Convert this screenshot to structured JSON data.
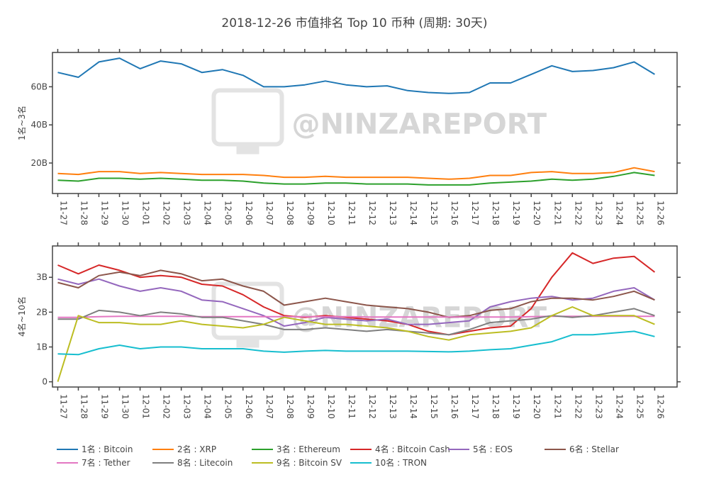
{
  "title": "2018-12-26 市值排名 Top 10 币种 (周期: 30天)",
  "watermark": "@NINZAREPORT",
  "chart_data": [
    {
      "type": "line",
      "panel": "top",
      "ylabel": "1名~3名",
      "x": [
        "11-27",
        "11-28",
        "11-29",
        "11-30",
        "12-01",
        "12-02",
        "12-03",
        "12-04",
        "12-05",
        "12-06",
        "12-07",
        "12-08",
        "12-09",
        "12-10",
        "12-11",
        "12-12",
        "12-13",
        "12-14",
        "12-15",
        "12-16",
        "12-17",
        "12-18",
        "12-19",
        "12-20",
        "12-21",
        "12-22",
        "12-23",
        "12-24",
        "12-25",
        "12-26"
      ],
      "ylim": [
        4,
        78
      ],
      "yticks": [
        {
          "value": 20,
          "label": "20B"
        },
        {
          "value": 40,
          "label": "40B"
        },
        {
          "value": 60,
          "label": "60B"
        }
      ],
      "series": [
        {
          "name": "1名 : Bitcoin",
          "color": "#1f77b4",
          "values": [
            67.5,
            65,
            73,
            75,
            69.5,
            73.5,
            72,
            67.5,
            69,
            66,
            60,
            60,
            61,
            63,
            61,
            60,
            60.5,
            58,
            57,
            56.5,
            57,
            62,
            62,
            66.5,
            71,
            68,
            68.5,
            70,
            73,
            66.5
          ]
        },
        {
          "name": "2名 : XRP",
          "color": "#ff7f0e",
          "values": [
            14.5,
            14,
            15.5,
            15.5,
            14.5,
            15,
            14.5,
            14,
            14,
            14,
            13.5,
            12.5,
            12.5,
            13,
            12.5,
            12.5,
            12.5,
            12.5,
            12,
            11.5,
            12,
            13.5,
            13.5,
            15,
            15.5,
            14.5,
            14.5,
            15,
            17.5,
            15.5
          ]
        },
        {
          "name": "3名 : Ethereum",
          "color": "#2ca02c",
          "values": [
            11,
            10.5,
            12,
            12,
            11.5,
            12,
            11.5,
            11,
            11,
            10.5,
            9.5,
            9,
            9,
            9.5,
            9.5,
            9,
            9,
            9,
            8.5,
            8.5,
            8.5,
            9.5,
            10,
            10.5,
            11.5,
            11,
            11.5,
            13,
            15,
            13.5
          ]
        }
      ]
    },
    {
      "type": "line",
      "panel": "bottom",
      "ylabel": "4名~10名",
      "x": [
        "11-27",
        "11-28",
        "11-29",
        "11-30",
        "12-01",
        "12-02",
        "12-03",
        "12-04",
        "12-05",
        "12-06",
        "12-07",
        "12-08",
        "12-09",
        "12-10",
        "12-11",
        "12-12",
        "12-13",
        "12-14",
        "12-15",
        "12-16",
        "12-17",
        "12-18",
        "12-19",
        "12-20",
        "12-21",
        "12-22",
        "12-23",
        "12-24",
        "12-25",
        "12-26"
      ],
      "ylim": [
        -0.15,
        3.9
      ],
      "yticks": [
        {
          "value": 0,
          "label": "0"
        },
        {
          "value": 1,
          "label": "1B"
        },
        {
          "value": 2,
          "label": "2B"
        },
        {
          "value": 3,
          "label": "3B"
        }
      ],
      "series": [
        {
          "name": "4名 : Bitcoin Cash",
          "color": "#d62728",
          "values": [
            3.35,
            3.1,
            3.35,
            3.2,
            3.0,
            3.05,
            3.0,
            2.8,
            2.75,
            2.5,
            2.15,
            1.9,
            1.85,
            1.9,
            1.85,
            1.8,
            1.75,
            1.65,
            1.45,
            1.35,
            1.45,
            1.55,
            1.6,
            2.1,
            3.0,
            3.7,
            3.4,
            3.55,
            3.6,
            3.15
          ]
        },
        {
          "name": "5名 : EOS",
          "color": "#9467bd",
          "values": [
            2.95,
            2.8,
            2.95,
            2.75,
            2.6,
            2.7,
            2.6,
            2.35,
            2.3,
            2.1,
            1.9,
            1.6,
            1.7,
            1.85,
            1.8,
            1.75,
            1.8,
            1.65,
            1.65,
            1.7,
            1.75,
            2.15,
            2.3,
            2.4,
            2.45,
            2.35,
            2.4,
            2.6,
            2.7,
            2.35
          ]
        },
        {
          "name": "6名 : Stellar",
          "color": "#8c564b",
          "values": [
            2.85,
            2.7,
            3.05,
            3.15,
            3.05,
            3.2,
            3.1,
            2.9,
            2.95,
            2.75,
            2.6,
            2.2,
            2.3,
            2.4,
            2.3,
            2.2,
            2.15,
            2.1,
            2.0,
            1.85,
            1.9,
            2.05,
            2.1,
            2.3,
            2.4,
            2.4,
            2.35,
            2.45,
            2.6,
            2.35
          ]
        },
        {
          "name": "7名 : Tether",
          "color": "#e377c2",
          "values": [
            1.85,
            1.85,
            1.87,
            1.88,
            1.88,
            1.88,
            1.88,
            1.87,
            1.87,
            1.87,
            1.87,
            1.87,
            1.87,
            1.87,
            1.87,
            1.86,
            1.86,
            1.86,
            1.86,
            1.86,
            1.86,
            1.86,
            1.86,
            1.87,
            1.88,
            1.88,
            1.88,
            1.88,
            1.88,
            1.88
          ]
        },
        {
          "name": "8名 : Litecoin",
          "color": "#7f7f7f",
          "values": [
            1.8,
            1.8,
            2.05,
            2.0,
            1.9,
            2.0,
            1.95,
            1.85,
            1.85,
            1.75,
            1.65,
            1.5,
            1.5,
            1.55,
            1.5,
            1.45,
            1.5,
            1.45,
            1.4,
            1.35,
            1.5,
            1.7,
            1.75,
            1.8,
            1.9,
            1.85,
            1.9,
            2.0,
            2.1,
            1.9
          ]
        },
        {
          "name": "9名 : Bitcoin SV",
          "color": "#bcbd22",
          "values": [
            0.0,
            1.9,
            1.7,
            1.7,
            1.65,
            1.65,
            1.75,
            1.65,
            1.6,
            1.55,
            1.65,
            1.85,
            1.75,
            1.65,
            1.65,
            1.6,
            1.55,
            1.45,
            1.3,
            1.2,
            1.35,
            1.4,
            1.45,
            1.55,
            1.9,
            2.15,
            1.9,
            1.9,
            1.9,
            1.65
          ]
        },
        {
          "name": "10名 : TRON",
          "color": "#17becf",
          "values": [
            0.8,
            0.78,
            0.95,
            1.05,
            0.95,
            1.0,
            1.0,
            0.95,
            0.95,
            0.95,
            0.88,
            0.85,
            0.88,
            0.9,
            0.88,
            0.88,
            0.88,
            0.88,
            0.87,
            0.86,
            0.88,
            0.92,
            0.95,
            1.05,
            1.15,
            1.35,
            1.35,
            1.4,
            1.45,
            1.3
          ]
        }
      ]
    }
  ]
}
